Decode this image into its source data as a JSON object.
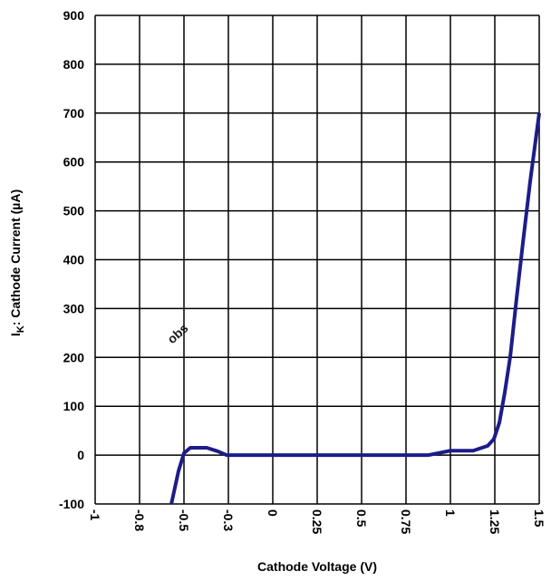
{
  "chart_data": {
    "type": "line",
    "watermark": "obs",
    "xlabel": "Cathode Voltage (V)",
    "ylabel": [
      "I",
      "K",
      ": Cathode Current (µA)"
    ],
    "xlim": [
      -1,
      1.5
    ],
    "xticks": [
      -1,
      {
        "value": -0.75,
        "label": "-0.8"
      },
      -0.5,
      {
        "value": -0.25,
        "label": "-0.3"
      },
      0,
      0.25,
      0.5,
      0.75,
      1,
      1.25,
      1.5
    ],
    "ylim": [
      -100,
      900
    ],
    "yticks": [
      -100,
      0,
      100,
      200,
      300,
      400,
      500,
      600,
      700,
      800,
      900
    ],
    "grid": true,
    "series": [
      {
        "color": "#1c1c8a",
        "x": [
          -0.571,
          -0.531,
          -0.5,
          -0.464,
          -0.372,
          -0.311,
          -0.26,
          0.877,
          1,
          1.128,
          1.21,
          1.245,
          1.276,
          1.306,
          1.337,
          1.372,
          1.408,
          1.449,
          1.5
        ],
        "values": [
          -100,
          -33,
          4,
          15,
          15,
          8,
          0,
          0,
          9,
          9,
          19,
          33,
          67,
          128,
          202,
          319,
          434,
          560,
          700
        ]
      }
    ]
  }
}
